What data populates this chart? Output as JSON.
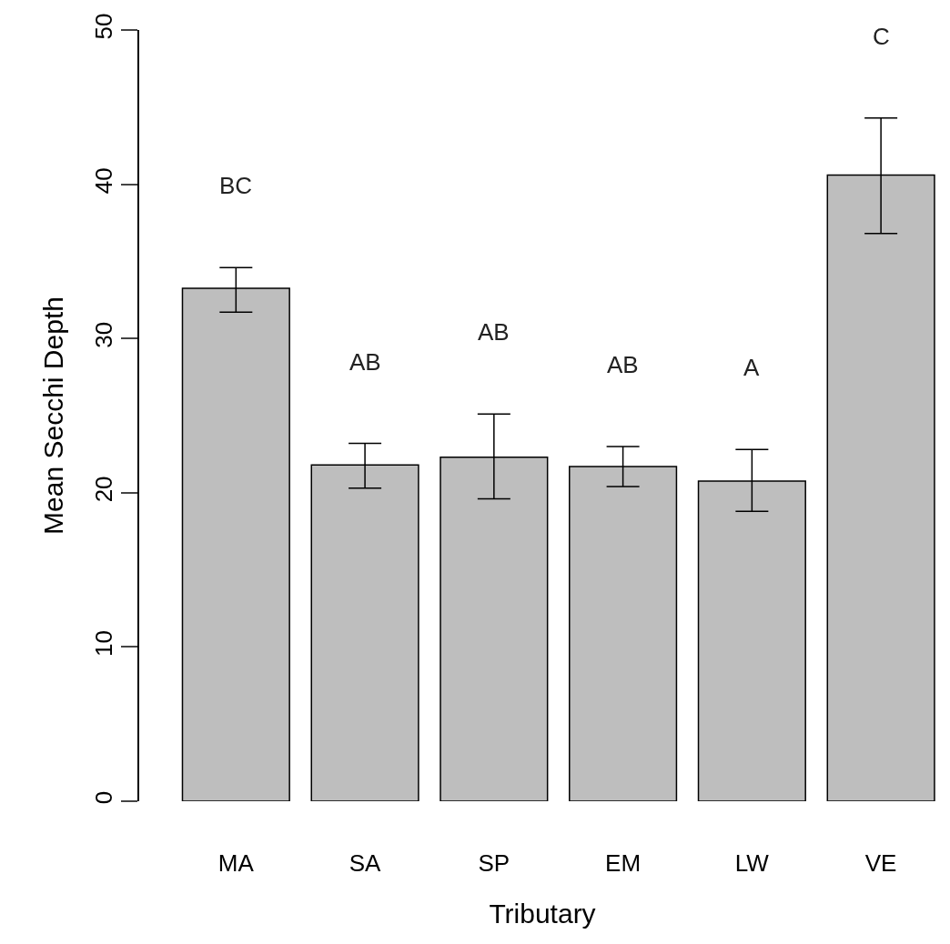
{
  "chart_data": {
    "type": "bar",
    "xlabel": "Tributary",
    "ylabel": "Mean Secchi Depth",
    "categories": [
      "MA",
      "SA",
      "SP",
      "EM",
      "LW",
      "VE"
    ],
    "values": [
      33.25,
      21.8,
      22.3,
      21.7,
      20.75,
      40.6
    ],
    "errors": [
      [
        31.7,
        34.6
      ],
      [
        20.3,
        23.2
      ],
      [
        19.6,
        25.1
      ],
      [
        20.4,
        23.0
      ],
      [
        18.8,
        22.8
      ],
      [
        36.8,
        44.3
      ]
    ],
    "color": "#bebebe",
    "ylim": [
      0,
      50
    ],
    "yticks": [
      0,
      10,
      20,
      30,
      40,
      50
    ],
    "annotations": [
      "BC",
      "AB",
      "AB",
      "AB",
      "A",
      "C"
    ]
  }
}
